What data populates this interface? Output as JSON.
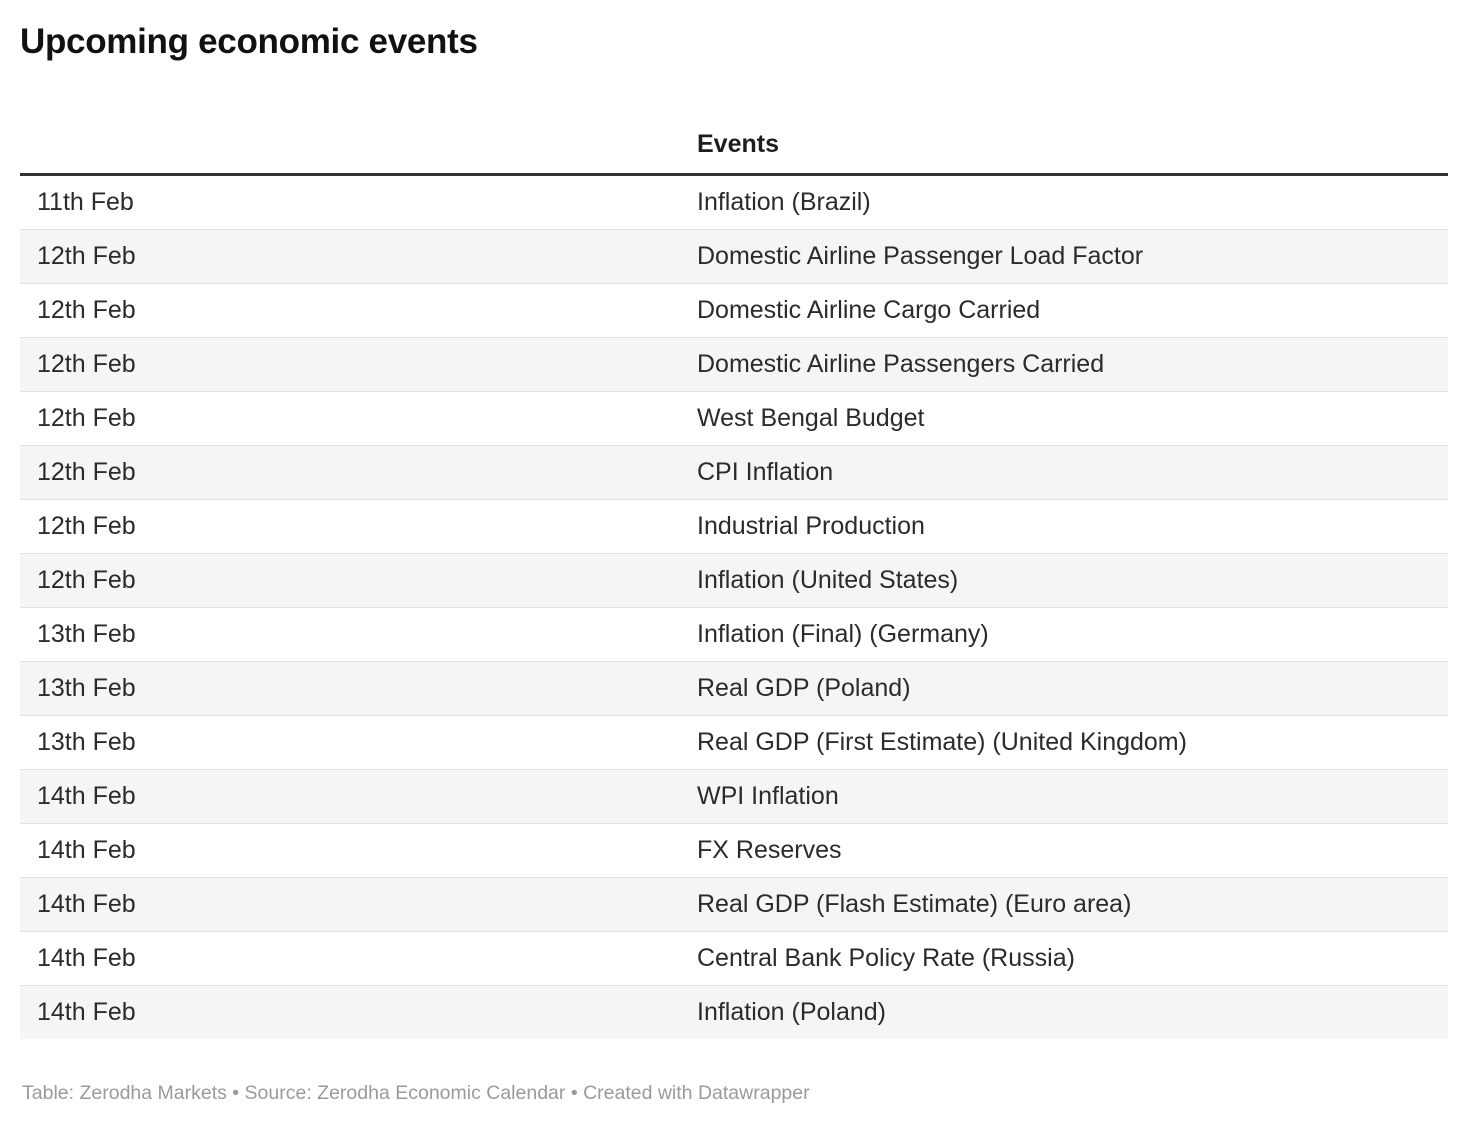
{
  "header": {
    "title": "Upcoming economic events"
  },
  "table": {
    "columns": {
      "date": "",
      "events": "Events"
    },
    "rows": [
      {
        "date": "11th Feb",
        "event": "Inflation (Brazil)"
      },
      {
        "date": "12th Feb",
        "event": "Domestic Airline Passenger Load Factor"
      },
      {
        "date": "12th Feb",
        "event": "Domestic Airline Cargo Carried"
      },
      {
        "date": "12th Feb",
        "event": "Domestic Airline Passengers Carried"
      },
      {
        "date": "12th Feb",
        "event": "West Bengal Budget"
      },
      {
        "date": "12th Feb",
        "event": "CPI Inflation"
      },
      {
        "date": "12th Feb",
        "event": "Industrial Production"
      },
      {
        "date": "12th Feb",
        "event": "Inflation (United States)"
      },
      {
        "date": "13th Feb",
        "event": "Inflation (Final) (Germany)"
      },
      {
        "date": "13th Feb",
        "event": "Real GDP (Poland)"
      },
      {
        "date": "13th Feb",
        "event": "Real GDP (First Estimate) (United Kingdom)"
      },
      {
        "date": "14th Feb",
        "event": "WPI Inflation"
      },
      {
        "date": "14th Feb",
        "event": "FX Reserves"
      },
      {
        "date": "14th Feb",
        "event": "Real GDP (Flash Estimate) (Euro area)"
      },
      {
        "date": "14th Feb",
        "event": "Central Bank Policy Rate (Russia)"
      },
      {
        "date": "14th Feb",
        "event": "Inflation (Poland)"
      }
    ]
  },
  "footer": {
    "table_label": "Table:",
    "table_credit": "Zerodha Markets",
    "separator": "•",
    "source_label": "Source:",
    "source_credit": "Zerodha Economic Calendar",
    "created_label": "Created with",
    "created_credit": "Datawrapper"
  },
  "colors": {
    "accent_rule": "#333333",
    "row_stripe": "#f5f5f5",
    "row_border": "#e3e3e3",
    "body_text": "#2b2b2b",
    "title_text": "#111111",
    "footer_text": "#9a9a9a"
  }
}
